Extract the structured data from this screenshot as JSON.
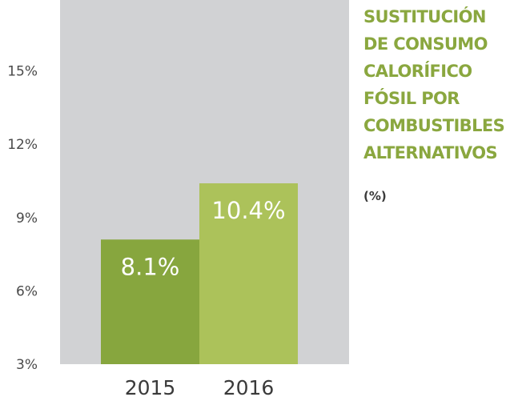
{
  "chart_data": {
    "type": "bar",
    "title_lines": [
      "SUSTITUCIÓN",
      "DE CONSUMO",
      "CALORÍFICO",
      "FÓSIL POR",
      "COMBUSTIBLES",
      "ALTERNATIVOS"
    ],
    "unit": "(%)",
    "categories": [
      "2015",
      "2016"
    ],
    "values": [
      8.1,
      10.4
    ],
    "value_labels": [
      "8.1%",
      "10.4%"
    ],
    "y_ticks": [
      3,
      6,
      9,
      12,
      15
    ],
    "y_tick_labels": [
      "3%",
      "6%",
      "9%",
      "12%",
      "15%"
    ],
    "ylim": [
      3,
      17.9
    ],
    "grid": false,
    "legend": "none",
    "colors": {
      "plot_background": "#d1d2d4",
      "bars": [
        "#87a63e",
        "#acc25a"
      ],
      "title": "#8aa73f"
    }
  }
}
